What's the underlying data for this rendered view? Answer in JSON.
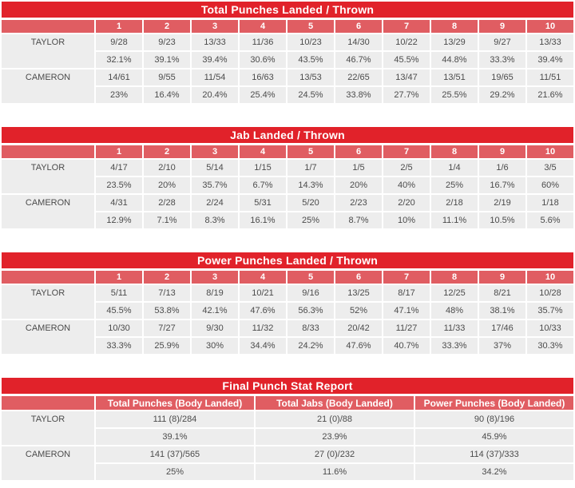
{
  "colors": {
    "title_bg": "#e1222a",
    "header_bg": "#e05d62",
    "row_bg": "#ededed",
    "text": "#4b4b4b",
    "header_text": "#ffffff"
  },
  "chart_data": [
    {
      "type": "table",
      "title": "Total Punches Landed / Thrown",
      "columns": [
        "1",
        "2",
        "3",
        "4",
        "5",
        "6",
        "7",
        "8",
        "9",
        "10"
      ],
      "rows": [
        {
          "name": "TAYLOR",
          "values": [
            "9/28",
            "9/23",
            "13/33",
            "11/36",
            "10/23",
            "14/30",
            "10/22",
            "13/29",
            "9/27",
            "13/33"
          ],
          "pcts": [
            "32.1%",
            "39.1%",
            "39.4%",
            "30.6%",
            "43.5%",
            "46.7%",
            "45.5%",
            "44.8%",
            "33.3%",
            "39.4%"
          ]
        },
        {
          "name": "CAMERON",
          "values": [
            "14/61",
            "9/55",
            "11/54",
            "16/63",
            "13/53",
            "22/65",
            "13/47",
            "13/51",
            "19/65",
            "11/51"
          ],
          "pcts": [
            "23%",
            "16.4%",
            "20.4%",
            "25.4%",
            "24.5%",
            "33.8%",
            "27.7%",
            "25.5%",
            "29.2%",
            "21.6%"
          ]
        }
      ]
    },
    {
      "type": "table",
      "title": "Jab Landed / Thrown",
      "columns": [
        "1",
        "2",
        "3",
        "4",
        "5",
        "6",
        "7",
        "8",
        "9",
        "10"
      ],
      "rows": [
        {
          "name": "TAYLOR",
          "values": [
            "4/17",
            "2/10",
            "5/14",
            "1/15",
            "1/7",
            "1/5",
            "2/5",
            "1/4",
            "1/6",
            "3/5"
          ],
          "pcts": [
            "23.5%",
            "20%",
            "35.7%",
            "6.7%",
            "14.3%",
            "20%",
            "40%",
            "25%",
            "16.7%",
            "60%"
          ]
        },
        {
          "name": "CAMERON",
          "values": [
            "4/31",
            "2/28",
            "2/24",
            "5/31",
            "5/20",
            "2/23",
            "2/20",
            "2/18",
            "2/19",
            "1/18"
          ],
          "pcts": [
            "12.9%",
            "7.1%",
            "8.3%",
            "16.1%",
            "25%",
            "8.7%",
            "10%",
            "11.1%",
            "10.5%",
            "5.6%"
          ]
        }
      ]
    },
    {
      "type": "table",
      "title": "Power Punches Landed / Thrown",
      "columns": [
        "1",
        "2",
        "3",
        "4",
        "5",
        "6",
        "7",
        "8",
        "9",
        "10"
      ],
      "rows": [
        {
          "name": "TAYLOR",
          "values": [
            "5/11",
            "7/13",
            "8/19",
            "10/21",
            "9/16",
            "13/25",
            "8/17",
            "12/25",
            "8/21",
            "10/28"
          ],
          "pcts": [
            "45.5%",
            "53.8%",
            "42.1%",
            "47.6%",
            "56.3%",
            "52%",
            "47.1%",
            "48%",
            "38.1%",
            "35.7%"
          ]
        },
        {
          "name": "CAMERON",
          "values": [
            "10/30",
            "7/27",
            "9/30",
            "11/32",
            "8/33",
            "20/42",
            "11/27",
            "11/33",
            "17/46",
            "10/33"
          ],
          "pcts": [
            "33.3%",
            "25.9%",
            "30%",
            "34.4%",
            "24.2%",
            "47.6%",
            "40.7%",
            "33.3%",
            "37%",
            "30.3%"
          ]
        }
      ]
    },
    {
      "type": "table",
      "title": "Final Punch Stat Report",
      "columns": [
        "Total Punches (Body Landed)",
        "Total Jabs (Body Landed)",
        "Power Punches (Body Landed)"
      ],
      "rows": [
        {
          "name": "TAYLOR",
          "values": [
            "111 (8)/284",
            "21 (0)/88",
            "90 (8)/196"
          ],
          "pcts": [
            "39.1%",
            "23.9%",
            "45.9%"
          ]
        },
        {
          "name": "CAMERON",
          "values": [
            "141 (37)/565",
            "27 (0)/232",
            "114 (37)/333"
          ],
          "pcts": [
            "25%",
            "11.6%",
            "34.2%"
          ]
        }
      ]
    }
  ]
}
